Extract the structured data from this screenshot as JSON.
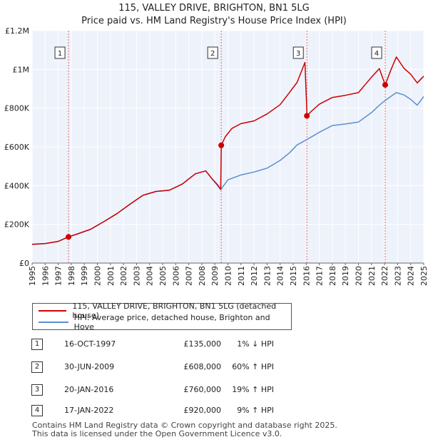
{
  "chart_data": {
    "type": "line",
    "title": "115, VALLEY DRIVE, BRIGHTON, BN1 5LG",
    "subtitle": "Price paid vs. HM Land Registry's House Price Index (HPI)",
    "xlim": [
      1995,
      2025
    ],
    "ylim": [
      0,
      1200000
    ],
    "x_ticks": [
      "1995",
      "1996",
      "1997",
      "1998",
      "1999",
      "2000",
      "2001",
      "2002",
      "2003",
      "2004",
      "2005",
      "2006",
      "2007",
      "2008",
      "2009",
      "2010",
      "2011",
      "2012",
      "2013",
      "2014",
      "2015",
      "2016",
      "2017",
      "2018",
      "2019",
      "2020",
      "2021",
      "2022",
      "2023",
      "2024",
      "2025"
    ],
    "y_ticks": [
      {
        "value": 0,
        "label": "£0"
      },
      {
        "value": 200000,
        "label": "£200K"
      },
      {
        "value": 400000,
        "label": "£400K"
      },
      {
        "value": 600000,
        "label": "£600K"
      },
      {
        "value": 800000,
        "label": "£800K"
      },
      {
        "value": 1000000,
        "label": "£1M"
      },
      {
        "value": 1200000,
        "label": "£1.2M"
      }
    ],
    "series": [
      {
        "name": "115, VALLEY DRIVE, BRIGHTON, BN1 5LG (detached house)",
        "color": "#cc0000",
        "points": [
          [
            1995.0,
            97000
          ],
          [
            1996.0,
            101000
          ],
          [
            1997.0,
            112000
          ],
          [
            1997.79,
            135000
          ],
          [
            1998.5,
            151000
          ],
          [
            1999.5,
            175000
          ],
          [
            2000.5,
            214000
          ],
          [
            2001.5,
            255000
          ],
          [
            2002.5,
            304000
          ],
          [
            2003.5,
            350000
          ],
          [
            2004.5,
            370000
          ],
          [
            2005.5,
            376000
          ],
          [
            2006.5,
            408000
          ],
          [
            2007.5,
            461000
          ],
          [
            2008.3,
            476000
          ],
          [
            2008.8,
            434000
          ],
          [
            2009.2,
            405000
          ],
          [
            2009.45,
            381000
          ],
          [
            2009.49,
            608000
          ],
          [
            2009.8,
            652000
          ],
          [
            2010.3,
            695000
          ],
          [
            2011.0,
            720000
          ],
          [
            2012.0,
            734000
          ],
          [
            2013.0,
            770000
          ],
          [
            2014.0,
            818000
          ],
          [
            2014.7,
            879000
          ],
          [
            2015.3,
            933000
          ],
          [
            2015.9,
            1036000
          ],
          [
            2016.04,
            800000
          ],
          [
            2016.05,
            760000
          ],
          [
            2016.4,
            784000
          ],
          [
            2017.0,
            820000
          ],
          [
            2018.0,
            855000
          ],
          [
            2019.0,
            866000
          ],
          [
            2020.0,
            880000
          ],
          [
            2021.0,
            960000
          ],
          [
            2021.6,
            1004000
          ],
          [
            2022.05,
            920000
          ],
          [
            2022.5,
            1000000
          ],
          [
            2022.9,
            1064000
          ],
          [
            2023.5,
            1005000
          ],
          [
            2024.0,
            975000
          ],
          [
            2024.5,
            930000
          ],
          [
            2025.0,
            965000
          ]
        ]
      },
      {
        "name": "HPI: Average price, detached house, Brighton and Hove",
        "color": "#5b8fd0",
        "points": [
          [
            1995.0,
            96000
          ],
          [
            1996.0,
            100000
          ],
          [
            1997.0,
            112000
          ],
          [
            1997.79,
            136000
          ],
          [
            1998.5,
            151000
          ],
          [
            1999.5,
            175000
          ],
          [
            2000.5,
            214000
          ],
          [
            2001.5,
            255000
          ],
          [
            2002.5,
            304000
          ],
          [
            2003.5,
            350000
          ],
          [
            2004.5,
            370000
          ],
          [
            2005.5,
            376000
          ],
          [
            2006.5,
            408000
          ],
          [
            2007.5,
            461000
          ],
          [
            2008.3,
            476000
          ],
          [
            2008.8,
            434000
          ],
          [
            2009.2,
            400000
          ],
          [
            2009.45,
            379000
          ],
          [
            2010.0,
            430000
          ],
          [
            2011.0,
            455000
          ],
          [
            2012.0,
            470000
          ],
          [
            2013.0,
            490000
          ],
          [
            2014.0,
            530000
          ],
          [
            2014.7,
            568000
          ],
          [
            2015.3,
            610000
          ],
          [
            2016.05,
            638000
          ],
          [
            2017.0,
            675000
          ],
          [
            2018.0,
            710000
          ],
          [
            2019.0,
            718000
          ],
          [
            2020.0,
            728000
          ],
          [
            2021.0,
            777000
          ],
          [
            2021.6,
            815000
          ],
          [
            2022.05,
            840000
          ],
          [
            2022.9,
            880000
          ],
          [
            2023.5,
            868000
          ],
          [
            2024.0,
            845000
          ],
          [
            2024.5,
            815000
          ],
          [
            2025.0,
            860000
          ]
        ]
      }
    ],
    "sales": [
      {
        "label": "1",
        "year": 1997.79,
        "price": 135000
      },
      {
        "label": "2",
        "year": 2009.49,
        "price": 608000
      },
      {
        "label": "3",
        "year": 2016.05,
        "price": 760000
      },
      {
        "label": "4",
        "year": 2022.05,
        "price": 920000
      }
    ],
    "legend_position": "below-left"
  },
  "header": {
    "title": "115, VALLEY DRIVE, BRIGHTON, BN1 5LG",
    "subtitle": "Price paid vs. HM Land Registry's House Price Index (HPI)"
  },
  "legend": {
    "property_label": "115, VALLEY DRIVE, BRIGHTON, BN1 5LG (detached house)",
    "hpi_label": "HPI: Average price, detached house, Brighton and Hove"
  },
  "transactions": [
    {
      "num": "1",
      "date": "16-OCT-1997",
      "price": "£135,000",
      "hpi": "1% ↓ HPI"
    },
    {
      "num": "2",
      "date": "30-JUN-2009",
      "price": "£608,000",
      "hpi": "60% ↑ HPI"
    },
    {
      "num": "3",
      "date": "20-JAN-2016",
      "price": "£760,000",
      "hpi": "19% ↑ HPI"
    },
    {
      "num": "4",
      "date": "17-JAN-2022",
      "price": "£920,000",
      "hpi": "9% ↑ HPI"
    }
  ],
  "footer": {
    "line1": "Contains HM Land Registry data © Crown copyright and database right 2025.",
    "line2": "This data is licensed under the Open Government Licence v3.0."
  },
  "colors": {
    "property_line": "#cc0000",
    "hpi_line": "#5b8fd0",
    "plot_background": "#eef2fb",
    "grid": "#ffffff",
    "marker_line": "#e06666"
  }
}
